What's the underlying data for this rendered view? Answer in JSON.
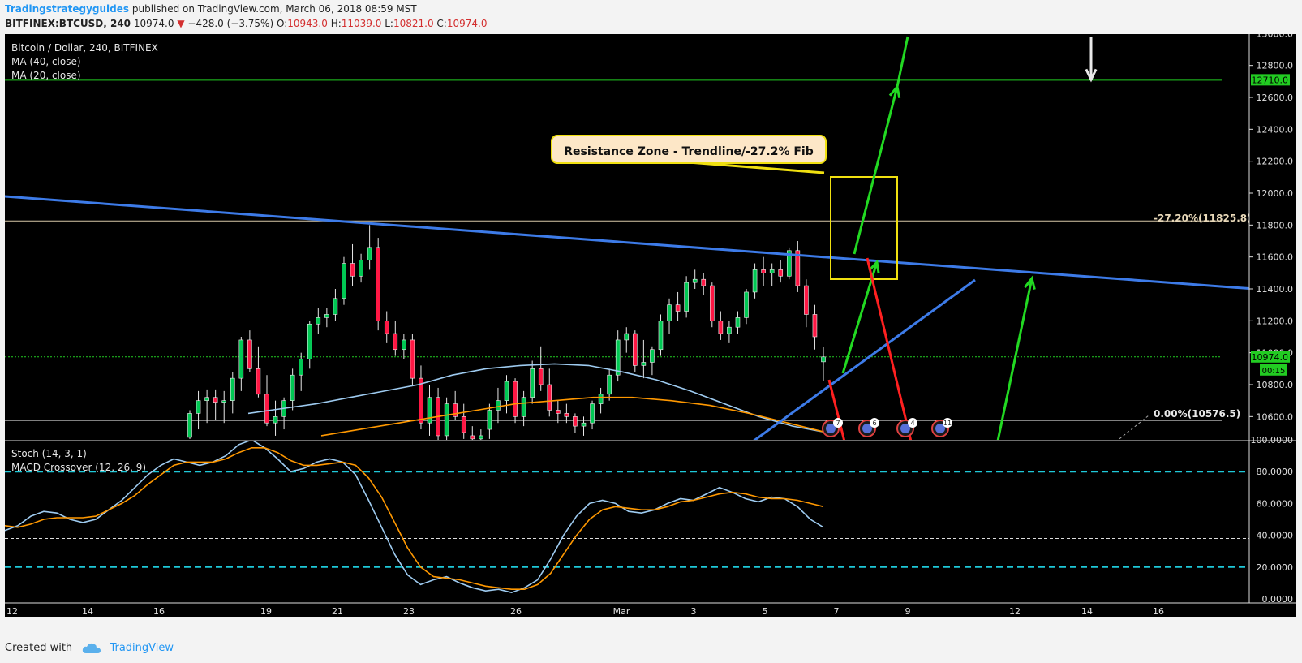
{
  "header": {
    "author": "Tradingstrategyguides",
    "published": "published on TradingView.com, March 06, 2018 08:59 MST",
    "symbol": "BITFINEX:BTCUSD, 240",
    "last": "10974.0",
    "change": "−428.0 (−3.75%)",
    "o_label": "O:",
    "o_value": "10943.0",
    "h_label": "H:",
    "h_value": "11039.0",
    "l_label": "L:",
    "l_value": "10821.0",
    "c_label": "C:",
    "c_value": "10974.0"
  },
  "legend": {
    "title": "Bitcoin / Dollar, 240, BITFINEX",
    "ma40": "MA (40, close)",
    "ma20": "MA (20, close)",
    "stoch": "Stoch (14, 3, 1)",
    "macd": "MACD Crossover (12, 26, 9)"
  },
  "annotation": {
    "resistance": "Resistance Zone - Trendline/-27.2% Fib"
  },
  "fib": {
    "upper": "-27.20%(11825.8)",
    "lower": "0.00%(10576.5)"
  },
  "price_tags": {
    "resistance_level": "12710.0",
    "current": "10974.0",
    "countdown": "00:15"
  },
  "events": [
    "7",
    "6",
    "4",
    "11"
  ],
  "colors": {
    "bg": "#000000",
    "up": "#00c853",
    "down": "#ff1744",
    "ma_fast": "#9ecbf0",
    "ma_slow": "#ff9800",
    "trend": "#3d7be8",
    "arrow_up": "#22d922",
    "arrow_down": "#ff2020",
    "zone": "#f0e010",
    "level_green": "#22cc22",
    "stoch_band": "#1ec8d8"
  },
  "footer": {
    "created_with": "Created with",
    "brand": "TradingView"
  },
  "chart_data": [
    {
      "type": "candlestick",
      "title": "Bitcoin / Dollar, 240, BITFINEX",
      "x_tick_labels": [
        "12",
        "14",
        "16",
        "19",
        "21",
        "23",
        "26",
        "Mar",
        "3",
        "5",
        "7",
        "9",
        "12",
        "14",
        "16"
      ],
      "y_tick_labels": [
        "13000.0",
        "12800.0",
        "12600.0",
        "12400.0",
        "12200.0",
        "12000.0",
        "11800.0",
        "11600.0",
        "11400.0",
        "11200.0",
        "11000.0",
        "10800.0",
        "10600.0"
      ],
      "ylim": [
        10466,
        13020
      ],
      "candles_ohlc": [
        [
          10470,
          10640,
          10460,
          10620
        ],
        [
          10620,
          10760,
          10520,
          10700
        ],
        [
          10700,
          10770,
          10560,
          10720
        ],
        [
          10720,
          10770,
          10580,
          10690
        ],
        [
          10690,
          10760,
          10560,
          10700
        ],
        [
          10700,
          10880,
          10620,
          10840
        ],
        [
          10840,
          11100,
          10760,
          11080
        ],
        [
          11080,
          11140,
          10880,
          10900
        ],
        [
          10900,
          11040,
          10720,
          10740
        ],
        [
          10740,
          10860,
          10540,
          10560
        ],
        [
          10560,
          10700,
          10480,
          10600
        ],
        [
          10600,
          10720,
          10520,
          10700
        ],
        [
          10700,
          10900,
          10640,
          10860
        ],
        [
          10860,
          11000,
          10760,
          10960
        ],
        [
          10960,
          11200,
          10900,
          11180
        ],
        [
          11180,
          11280,
          11120,
          11220
        ],
        [
          11220,
          11280,
          11160,
          11240
        ],
        [
          11240,
          11400,
          11200,
          11340
        ],
        [
          11340,
          11600,
          11300,
          11560
        ],
        [
          11560,
          11680,
          11420,
          11480
        ],
        [
          11480,
          11620,
          11440,
          11580
        ],
        [
          11580,
          11800,
          11520,
          11660
        ],
        [
          11660,
          11720,
          11140,
          11200
        ],
        [
          11200,
          11260,
          11060,
          11120
        ],
        [
          11120,
          11200,
          10980,
          11020
        ],
        [
          11020,
          11120,
          10960,
          11080
        ],
        [
          11080,
          11120,
          10800,
          10840
        ],
        [
          10840,
          10920,
          10520,
          10560
        ],
        [
          10560,
          10800,
          10480,
          10720
        ],
        [
          10720,
          10780,
          10440,
          10480
        ],
        [
          10480,
          10720,
          10420,
          10680
        ],
        [
          10680,
          10760,
          10580,
          10600
        ],
        [
          10600,
          10680,
          10460,
          10500
        ],
        [
          10480,
          10540,
          10400,
          10460
        ],
        [
          10460,
          10520,
          10400,
          10480
        ],
        [
          10520,
          10680,
          10460,
          10640
        ],
        [
          10640,
          10780,
          10560,
          10700
        ],
        [
          10700,
          10860,
          10620,
          10820
        ],
        [
          10820,
          10840,
          10560,
          10600
        ],
        [
          10600,
          10760,
          10540,
          10720
        ],
        [
          10720,
          10950,
          10680,
          10900
        ],
        [
          10900,
          11040,
          10760,
          10800
        ],
        [
          10800,
          10900,
          10600,
          10640
        ],
        [
          10640,
          10700,
          10560,
          10620
        ],
        [
          10620,
          10680,
          10560,
          10600
        ],
        [
          10600,
          10620,
          10500,
          10540
        ],
        [
          10540,
          10600,
          10480,
          10560
        ],
        [
          10560,
          10700,
          10520,
          10680
        ],
        [
          10680,
          10780,
          10620,
          10740
        ],
        [
          10740,
          10900,
          10700,
          10860
        ],
        [
          10860,
          11140,
          10820,
          11080
        ],
        [
          11080,
          11160,
          11000,
          11120
        ],
        [
          11120,
          11140,
          10880,
          10920
        ],
        [
          10920,
          11080,
          10840,
          10940
        ],
        [
          10940,
          11040,
          10860,
          11020
        ],
        [
          11020,
          11240,
          10980,
          11200
        ],
        [
          11200,
          11340,
          11120,
          11300
        ],
        [
          11300,
          11380,
          11200,
          11260
        ],
        [
          11260,
          11480,
          11220,
          11440
        ],
        [
          11440,
          11520,
          11400,
          11460
        ],
        [
          11460,
          11500,
          11360,
          11420
        ],
        [
          11420,
          11440,
          11160,
          11200
        ],
        [
          11200,
          11260,
          11080,
          11120
        ],
        [
          11120,
          11200,
          11060,
          11160
        ],
        [
          11160,
          11260,
          11120,
          11220
        ],
        [
          11220,
          11400,
          11180,
          11380
        ],
        [
          11380,
          11560,
          11340,
          11520
        ],
        [
          11520,
          11600,
          11420,
          11500
        ],
        [
          11500,
          11560,
          11420,
          11520
        ],
        [
          11520,
          11580,
          11440,
          11480
        ],
        [
          11480,
          11660,
          11460,
          11640
        ],
        [
          11640,
          11700,
          11380,
          11420
        ],
        [
          11420,
          11460,
          11160,
          11240
        ],
        [
          11240,
          11300,
          11020,
          11100
        ],
        [
          10943,
          11039,
          10821,
          10974
        ]
      ],
      "ma20_close": [
        10620,
        10650,
        10680,
        10720,
        10760,
        10800,
        10860,
        10900,
        10920,
        10930,
        10920,
        10880,
        10830,
        10760,
        10680,
        10600,
        10540,
        10500
      ],
      "ma40_close": [
        10480,
        10520,
        10560,
        10600,
        10640,
        10680,
        10700,
        10720,
        10720,
        10700,
        10670,
        10620,
        10560,
        10500
      ],
      "fib_levels": [
        {
          "label": "-27.20%",
          "value": 11825.8
        },
        {
          "label": "0.00%",
          "value": 10576.5
        }
      ],
      "horizontal_levels": [
        12710.0,
        10974.0
      ]
    },
    {
      "type": "line",
      "title": "Stoch (14, 3, 1)",
      "y_tick_labels": [
        "100.0000",
        "80.0000",
        "60.0000",
        "40.0000",
        "20.0000",
        "0.0000"
      ],
      "ylim": [
        0,
        100
      ],
      "bands": [
        80,
        20
      ],
      "series": [
        {
          "name": "%K",
          "values": [
            43,
            46,
            52,
            55,
            54,
            50,
            48,
            50,
            56,
            62,
            70,
            78,
            84,
            88,
            86,
            84,
            86,
            90,
            97,
            100,
            95,
            88,
            80,
            82,
            86,
            88,
            86,
            78,
            62,
            45,
            28,
            15,
            9,
            12,
            14,
            10,
            7,
            5,
            6,
            4,
            7,
            12,
            25,
            40,
            52,
            60,
            62,
            60,
            55,
            54,
            56,
            60,
            63,
            62,
            66,
            70,
            67,
            63,
            61,
            64,
            63,
            58,
            50,
            45
          ]
        },
        {
          "name": "%D",
          "values": [
            46,
            45,
            47,
            50,
            51,
            51,
            51,
            52,
            56,
            60,
            65,
            72,
            78,
            84,
            86,
            86,
            86,
            88,
            92,
            95,
            95,
            92,
            87,
            84,
            84,
            85,
            86,
            84,
            76,
            64,
            48,
            32,
            20,
            14,
            13,
            12,
            10,
            8,
            7,
            6,
            6,
            9,
            16,
            28,
            40,
            50,
            56,
            58,
            57,
            56,
            56,
            58,
            61,
            62,
            64,
            66,
            67,
            66,
            64,
            63,
            63,
            62,
            60,
            58
          ]
        }
      ]
    }
  ]
}
